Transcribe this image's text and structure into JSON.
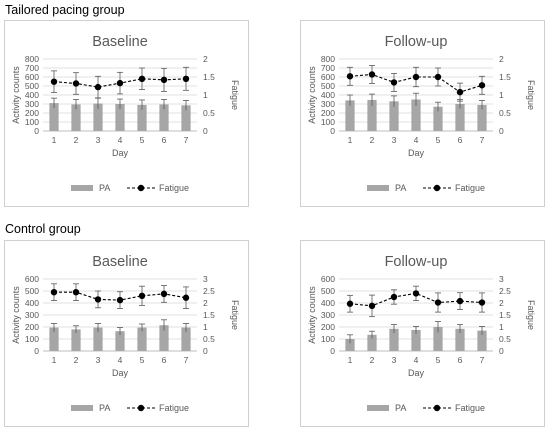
{
  "groups": [
    {
      "title": "Tailored pacing group"
    },
    {
      "title": "Control group"
    }
  ],
  "colors": {
    "bar": "#a6a6a6",
    "line": "#000000",
    "error": "#595959",
    "grid": "#d9d9d9",
    "axis_text": "#595959"
  },
  "chart_data": [
    {
      "type": "bar",
      "title": "Baseline",
      "xlabel": "Day",
      "ylabel": "Activity counts",
      "y2label": "Fatigue",
      "categories": [
        "1",
        "2",
        "3",
        "4",
        "5",
        "6",
        "7"
      ],
      "ylim": [
        0,
        800
      ],
      "yticks": [
        0,
        100,
        200,
        300,
        400,
        500,
        600,
        700,
        800
      ],
      "y2lim": [
        0,
        2
      ],
      "y2ticks": [
        "0",
        "0.5",
        "1",
        "1.5",
        "2"
      ],
      "grid": true,
      "legend_position": "bottom",
      "legend": [
        "PA",
        "Fatigue"
      ],
      "series": [
        {
          "name": "PA",
          "kind": "bar",
          "axis": "left",
          "values": [
            310,
            295,
            305,
            300,
            290,
            295,
            285
          ],
          "error": [
            55,
            55,
            60,
            55,
            55,
            55,
            55
          ]
        },
        {
          "name": "Fatigue",
          "kind": "line",
          "axis": "right",
          "values": [
            1.37,
            1.32,
            1.22,
            1.33,
            1.45,
            1.42,
            1.45
          ],
          "error": [
            0.3,
            0.3,
            0.3,
            0.3,
            0.3,
            0.32,
            0.32
          ]
        }
      ]
    },
    {
      "type": "bar",
      "title": "Follow-up",
      "xlabel": "Day",
      "ylabel": "Activity counts",
      "y2label": "Fatigue",
      "categories": [
        "1",
        "2",
        "3",
        "4",
        "5",
        "6",
        "7"
      ],
      "ylim": [
        0,
        800
      ],
      "yticks": [
        0,
        100,
        200,
        300,
        400,
        500,
        600,
        700,
        800
      ],
      "y2lim": [
        0,
        2
      ],
      "y2ticks": [
        "0",
        "0.5",
        "1",
        "1.5",
        "2"
      ],
      "grid": true,
      "legend_position": "bottom",
      "legend": [
        "PA",
        "Fatigue"
      ],
      "series": [
        {
          "name": "PA",
          "kind": "bar",
          "axis": "left",
          "values": [
            340,
            345,
            330,
            350,
            270,
            300,
            290
          ],
          "error": [
            60,
            65,
            60,
            70,
            50,
            50,
            50
          ]
        },
        {
          "name": "Fatigue",
          "kind": "line",
          "axis": "right",
          "values": [
            1.52,
            1.57,
            1.35,
            1.5,
            1.5,
            1.08,
            1.27
          ],
          "error": [
            0.25,
            0.25,
            0.25,
            0.27,
            0.25,
            0.25,
            0.25
          ]
        }
      ]
    },
    {
      "type": "bar",
      "title": "Baseline",
      "xlabel": "Day",
      "ylabel": "Activity counts",
      "y2label": "Fatigue",
      "categories": [
        "1",
        "2",
        "3",
        "4",
        "5",
        "6",
        "7"
      ],
      "ylim": [
        0,
        600
      ],
      "yticks": [
        0,
        100,
        200,
        300,
        400,
        500,
        600
      ],
      "y2lim": [
        0,
        3
      ],
      "y2ticks": [
        "0",
        "0.5",
        "1",
        "1.5",
        "2",
        "2.5",
        "3"
      ],
      "grid": true,
      "legend_position": "bottom",
      "legend": [
        "PA",
        "Fatigue"
      ],
      "series": [
        {
          "name": "PA",
          "kind": "bar",
          "axis": "left",
          "values": [
            195,
            180,
            195,
            165,
            195,
            215,
            195
          ],
          "error": [
            35,
            30,
            35,
            30,
            30,
            45,
            35
          ]
        },
        {
          "name": "Fatigue",
          "kind": "line",
          "axis": "right",
          "values": [
            2.45,
            2.45,
            2.15,
            2.12,
            2.3,
            2.38,
            2.22
          ],
          "error": [
            0.35,
            0.35,
            0.35,
            0.35,
            0.4,
            0.35,
            0.45
          ]
        }
      ]
    },
    {
      "type": "bar",
      "title": "Follow-up",
      "xlabel": "Day",
      "ylabel": "Activity counts",
      "y2label": "Fatigue",
      "categories": [
        "1",
        "2",
        "3",
        "4",
        "5",
        "6",
        "7"
      ],
      "ylim": [
        0,
        600
      ],
      "yticks": [
        0,
        100,
        200,
        300,
        400,
        500,
        600
      ],
      "y2lim": [
        0,
        3
      ],
      "y2ticks": [
        "0",
        "0.5",
        "1",
        "1.5",
        "2",
        "2.5",
        "3"
      ],
      "grid": true,
      "legend_position": "bottom",
      "legend": [
        "PA",
        "Fatigue"
      ],
      "series": [
        {
          "name": "PA",
          "kind": "bar",
          "axis": "left",
          "values": [
            100,
            135,
            185,
            175,
            200,
            185,
            170
          ],
          "error": [
            35,
            30,
            35,
            30,
            45,
            35,
            35
          ]
        },
        {
          "name": "Fatigue",
          "kind": "line",
          "axis": "right",
          "values": [
            1.97,
            1.88,
            2.25,
            2.4,
            2.02,
            2.08,
            2.02
          ],
          "error": [
            0.35,
            0.45,
            0.3,
            0.3,
            0.4,
            0.35,
            0.4
          ]
        }
      ]
    }
  ]
}
